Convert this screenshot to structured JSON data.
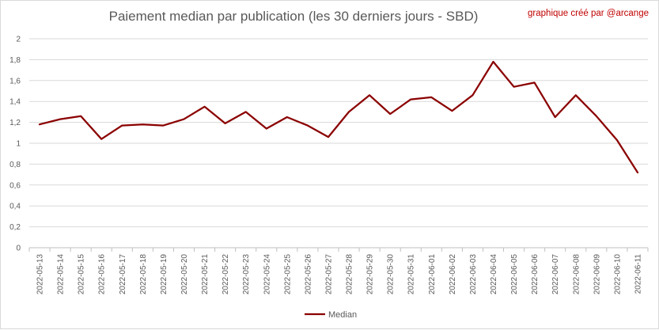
{
  "chart_data": {
    "type": "line",
    "title": "Paiement median par publication (les 30 derniers jours - SBD)",
    "annotation": "graphique créé par @arcange",
    "xlabel": "",
    "ylabel": "",
    "ylim": [
      0,
      2
    ],
    "yticks": [
      "0",
      "0,2",
      "0,4",
      "0,6",
      "0,8",
      "1",
      "1,2",
      "1,4",
      "1,6",
      "1,8",
      "2"
    ],
    "grid": true,
    "legend_position": "bottom",
    "categories": [
      "2022-05-13",
      "2022-05-14",
      "2022-05-15",
      "2022-05-16",
      "2022-05-17",
      "2022-05-18",
      "2022-05-19",
      "2022-05-20",
      "2022-05-21",
      "2022-05-22",
      "2022-05-23",
      "2022-05-24",
      "2022-05-25",
      "2022-05-26",
      "2022-05-27",
      "2022-05-28",
      "2022-05-29",
      "2022-05-30",
      "2022-05-31",
      "2022-06-01",
      "2022-06-02",
      "2022-06-03",
      "2022-06-04",
      "2022-06-05",
      "2022-06-06",
      "2022-06-07",
      "2022-06-08",
      "2022-06-09",
      "2022-06-10",
      "2022-06-11"
    ],
    "series": [
      {
        "name": "Median",
        "color": "#8b0000",
        "values": [
          1.18,
          1.23,
          1.26,
          1.04,
          1.17,
          1.18,
          1.17,
          1.23,
          1.35,
          1.19,
          1.3,
          1.14,
          1.25,
          1.17,
          1.06,
          1.3,
          1.46,
          1.28,
          1.42,
          1.44,
          1.31,
          1.46,
          1.78,
          1.54,
          1.58,
          1.25,
          1.46,
          1.26,
          1.03,
          0.72
        ]
      }
    ]
  }
}
